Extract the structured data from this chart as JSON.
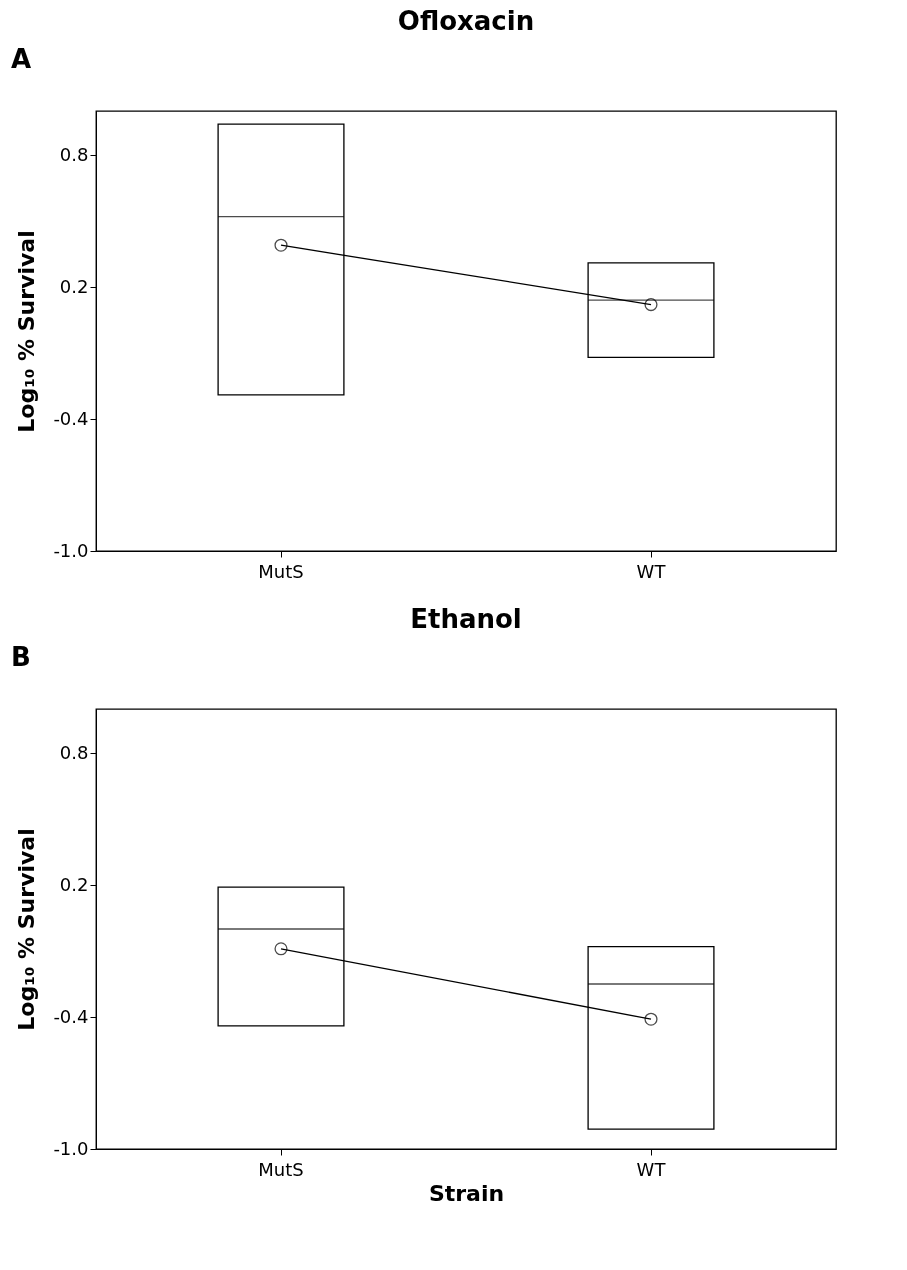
{
  "chart_data": [
    {
      "type": "box",
      "title": "Ofloxacin",
      "ylabel": "Log₁₀ % Survival",
      "annotations": [
        "A"
      ],
      "categories": [
        "MutS",
        "WT"
      ],
      "ylim": [
        -1.0,
        1.0
      ],
      "yticks": [
        {
          "value": 0.8,
          "label": "0.8"
        },
        {
          "value": 0.2,
          "label": "0.2"
        },
        {
          "value": -0.4,
          "label": "-0.4"
        },
        {
          "value": -1.0,
          "label": "-1.0"
        }
      ],
      "grid": false,
      "marker": "circle",
      "boxes": [
        {
          "low": -0.29,
          "q1": -0.29,
          "median": 0.52,
          "q3": 0.94,
          "high": 0.94
        },
        {
          "low": -0.12,
          "q1": -0.12,
          "median": 0.14,
          "q3": 0.31,
          "high": 0.31
        }
      ],
      "series": [
        {
          "type": "line",
          "color": "#000000",
          "values": [
            0.39,
            0.12
          ]
        }
      ]
    },
    {
      "type": "box",
      "title": "Ethanol",
      "xlabel": "Strain",
      "ylabel": "Log₁₀ % Survival",
      "annotations": [
        "B"
      ],
      "categories": [
        "MutS",
        "WT"
      ],
      "ylim": [
        -1.0,
        1.0
      ],
      "yticks": [
        {
          "value": 0.8,
          "label": "0.8"
        },
        {
          "value": 0.2,
          "label": "0.2"
        },
        {
          "value": -0.4,
          "label": "-0.4"
        },
        {
          "value": -1.0,
          "label": "-1.0"
        }
      ],
      "grid": false,
      "marker": "circle",
      "boxes": [
        {
          "low": -0.44,
          "q1": -0.44,
          "median": 0.0,
          "q3": 0.19,
          "high": 0.19
        },
        {
          "low": -0.91,
          "q1": -0.91,
          "median": -0.25,
          "q3": -0.08,
          "high": -0.08
        }
      ],
      "series": [
        {
          "type": "line",
          "color": "#000000",
          "values": [
            -0.09,
            -0.41
          ]
        }
      ]
    }
  ]
}
